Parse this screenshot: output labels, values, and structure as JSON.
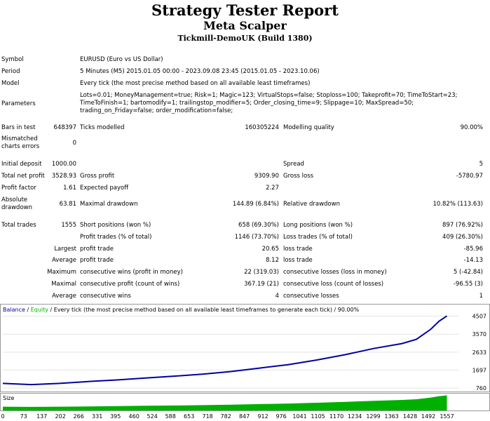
{
  "header": {
    "title": "Strategy Tester Report",
    "expert": "Meta Scalper",
    "server": "Tickmill-DemoUK (Build 1380)"
  },
  "info": {
    "symbol_label": "Symbol",
    "symbol": "EURUSD (Euro vs US Dollar)",
    "period_label": "Period",
    "period": "5 Minutes (M5) 2015.01.05 00:00 - 2023.09.08 23:45 (2015.01.05 - 2023.10.06)",
    "model_label": "Model",
    "model": "Every tick (the most precise method based on all available least timeframes)",
    "parameters_label": "Parameters",
    "parameters": "Lots=0.01; MoneyManagement=true; Risk=1; Magic=123; VirtualStops=false; Stoploss=100; Takeprofit=70; TimeToStart=23; TimeToFinish=1; bartomodify=1; trailingstop_modifier=5; Order_closing_time=9; Slippage=10; MaxSpread=50; trading_on_Friday=false; order_modification=false;"
  },
  "stats": {
    "bars_label": "Bars in test",
    "bars": "648397",
    "ticks_label": "Ticks modelled",
    "ticks": "160305224",
    "quality_label": "Modelling quality",
    "quality": "90.00%",
    "mismatch_label": "Mismatched charts errors",
    "mismatch": "0",
    "deposit_label": "Initial deposit",
    "deposit": "1000.00",
    "spread_label": "Spread",
    "spread": "5",
    "netprofit_label": "Total net profit",
    "netprofit": "3528.93",
    "grossprofit_label": "Gross profit",
    "grossprofit": "9309.90",
    "grossloss_label": "Gross loss",
    "grossloss": "-5780.97",
    "pf_label": "Profit factor",
    "pf": "1.61",
    "payoff_label": "Expected payoff",
    "payoff": "2.27",
    "absdd_label": "Absolute drawdown",
    "absdd": "63.81",
    "maxdd_label": "Maximal drawdown",
    "maxdd": "144.89 (6.84%)",
    "reldd_label": "Relative drawdown",
    "reldd": "10.82% (113.63)",
    "trades_label": "Total trades",
    "trades": "1555",
    "short_label": "Short positions (won %)",
    "short": "658 (69.30%)",
    "long_label": "Long positions (won %)",
    "long": "897 (76.92%)",
    "pt_label": "Profit trades (% of total)",
    "pt": "1146 (73.70%)",
    "lt_label": "Loss trades (% of total)",
    "lt": "409 (26.30%)",
    "largest_label": "Largest",
    "largest_pt_label": "profit trade",
    "largest_pt": "20.65",
    "largest_lt_label": "loss trade",
    "largest_lt": "-85.96",
    "average_label": "Average",
    "average_pt_label": "profit trade",
    "average_pt": "8.12",
    "average_lt_label": "loss trade",
    "average_lt": "-14.13",
    "maximum_label": "Maximum",
    "max_cw_label": "consecutive wins (profit in money)",
    "max_cw": "22 (319.03)",
    "max_cl_label": "consecutive losses (loss in money)",
    "max_cl": "5 (-42.84)",
    "maximal_label": "Maximal",
    "mx_cp_label": "consecutive profit (count of wins)",
    "mx_cp": "367.19 (21)",
    "mx_cl_label": "consecutive loss (count of losses)",
    "mx_cl": "-96.55 (3)",
    "avg2_label": "Average",
    "avg_cw_label": "consecutive wins",
    "avg_cw": "4",
    "avg_cl_label": "consecutive losses",
    "avg_cl": "1"
  },
  "graph": {
    "legend_balance": "Balance",
    "legend_sep": " / ",
    "legend_equity": "Equity",
    "legend_rest": " / Every tick (the most precise method based on all available least timeframes to generate each tick) / 90.00%",
    "size_label": "Size",
    "balance_color": "#0000a0",
    "size_color": "#00b000"
  },
  "chart_data": {
    "type": "line",
    "title": "",
    "xlabel": "",
    "ylabel": "",
    "y_ticks": [
      "4507",
      "3570",
      "2633",
      "1697",
      "760"
    ],
    "x_ticks": [
      "0",
      "73",
      "137",
      "202",
      "266",
      "331",
      "395",
      "460",
      "524",
      "588",
      "653",
      "718",
      "782",
      "847",
      "912",
      "976",
      "1041",
      "1105",
      "1170",
      "1234",
      "1299",
      "1363",
      "1428",
      "1492",
      "1557"
    ],
    "xlim": [
      0,
      1600
    ],
    "ylim": [
      760,
      4640
    ],
    "series": [
      {
        "name": "Balance",
        "x": [
          0,
          100,
          200,
          300,
          400,
          500,
          600,
          700,
          800,
          900,
          1000,
          1100,
          1200,
          1300,
          1400,
          1450,
          1500,
          1530,
          1557
        ],
        "values": [
          1000,
          940,
          1000,
          1100,
          1180,
          1280,
          1380,
          1480,
          1620,
          1800,
          1980,
          2220,
          2500,
          2820,
          3080,
          3300,
          3820,
          4250,
          4520
        ]
      }
    ]
  }
}
